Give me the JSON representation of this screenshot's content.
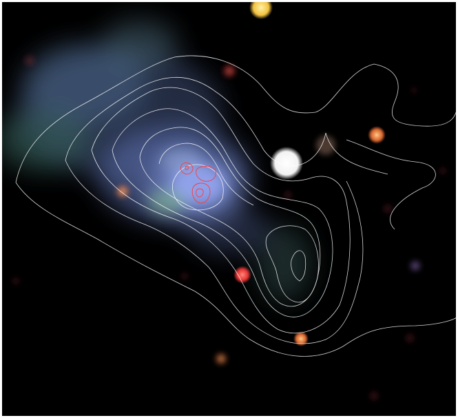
{
  "image": {
    "description_free": true,
    "background_color": "#000000",
    "border_color": "#ffffff",
    "colors": {
      "diffuse_blue": "#6f86c8",
      "diffuse_green": "#6fa37f",
      "star_white": "#ffffff",
      "star_yellow": "#ffd15a",
      "star_red": "#ff4a4a",
      "contour_white": "#ffffff",
      "contour_red": "#ff3b3b"
    }
  }
}
